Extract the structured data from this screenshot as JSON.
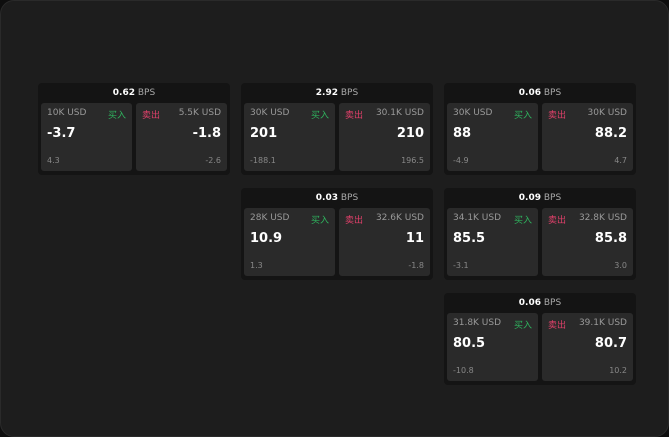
{
  "labels": {
    "buy": "买入",
    "sell": "卖出",
    "bps": "BPS"
  },
  "cards": [
    {
      "spread": "0.62",
      "bid_size": "10K USD",
      "bid": "-3.7",
      "bid_sub": "4.3",
      "ask_size": "5.5K USD",
      "ask": "-1.8",
      "ask_sub": "-2.6"
    },
    {
      "spread": "2.92",
      "bid_size": "30K USD",
      "bid": "201",
      "bid_sub": "-188.1",
      "ask_size": "30.1K USD",
      "ask": "210",
      "ask_sub": "196.5"
    },
    {
      "spread": "0.06",
      "bid_size": "30K USD",
      "bid": "88",
      "bid_sub": "-4.9",
      "ask_size": "30K USD",
      "ask": "88.2",
      "ask_sub": "4.7"
    },
    {
      "spread": "0.03",
      "bid_size": "28K USD",
      "bid": "10.9",
      "bid_sub": "1.3",
      "ask_size": "32.6K USD",
      "ask": "11",
      "ask_sub": "-1.8"
    },
    {
      "spread": "0.09",
      "bid_size": "34.1K USD",
      "bid": "85.5",
      "bid_sub": "-3.1",
      "ask_size": "32.8K USD",
      "ask": "85.8",
      "ask_sub": "3.0"
    },
    {
      "spread": "0.06",
      "bid_size": "31.8K USD",
      "bid": "80.5",
      "bid_sub": "-10.8",
      "ask_size": "39.1K USD",
      "ask": "80.7",
      "ask_sub": "10.2"
    }
  ]
}
